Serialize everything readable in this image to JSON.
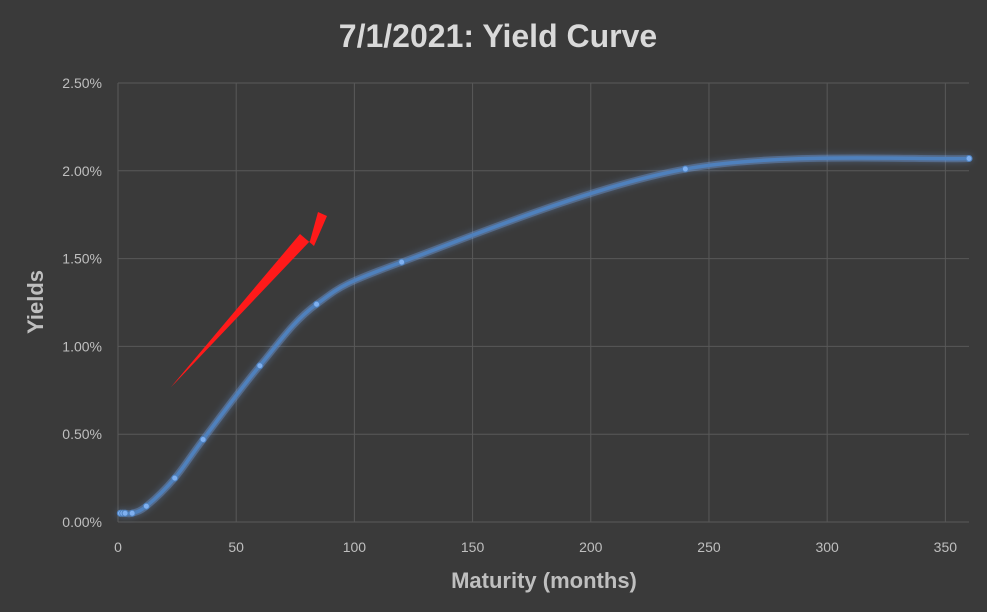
{
  "chart_data": {
    "type": "scatter",
    "title": "7/1/2021: Yield Curve",
    "xlabel": "Maturity (months)",
    "ylabel": "Yields",
    "xlim": [
      0,
      360
    ],
    "ylim": [
      0,
      0.025
    ],
    "grid": true,
    "smooth_line": true,
    "x_ticks": [
      "0",
      "50",
      "100",
      "150",
      "200",
      "250",
      "300",
      "350"
    ],
    "y_ticks": [
      "0.00%",
      "0.50%",
      "1.00%",
      "1.50%",
      "2.00%",
      "2.50%"
    ],
    "series": [
      {
        "x": [
          1,
          2,
          3,
          6,
          12,
          24,
          36,
          60,
          84,
          120,
          240,
          360
        ],
        "y": [
          0.0005,
          0.0005,
          0.0005,
          0.0005,
          0.0009,
          0.0025,
          0.0047,
          0.0089,
          0.0124,
          0.0148,
          0.0201,
          0.0207
        ]
      }
    ],
    "annotation": "red-arrow",
    "colors": {
      "background": "#3a3a3a",
      "line": "#4f81bd",
      "glow": "#6fa0e6",
      "arrow": "#ff1a1a"
    }
  }
}
